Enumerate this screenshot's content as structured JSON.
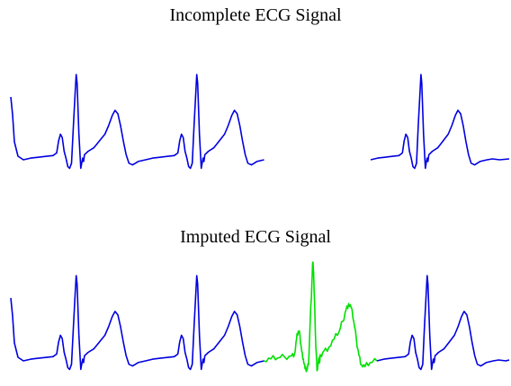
{
  "chart_data": [
    {
      "type": "line",
      "title": "Incomplete ECG Signal",
      "xlabel": "",
      "ylabel": "",
      "axes_visible": false,
      "series": [
        {
          "segment": 1,
          "color": "#0000e0",
          "x_range": [
            0,
            0.62
          ]
        },
        {
          "segment": 2,
          "color": "#0000e0",
          "x_range": [
            0.84,
            1.0
          ]
        }
      ]
    },
    {
      "type": "line",
      "title": "Imputed ECG Signal",
      "xlabel": "",
      "ylabel": "",
      "axes_visible": false,
      "series": [
        {
          "segment": 1,
          "color": "#0000e0",
          "x_range": [
            0,
            0.62
          ]
        },
        {
          "segment": 2,
          "color": "#00e000",
          "x_range": [
            0.62,
            0.84
          ]
        },
        {
          "segment": 3,
          "color": "#0000e0",
          "x_range": [
            0.84,
            1.0
          ]
        }
      ]
    }
  ]
}
